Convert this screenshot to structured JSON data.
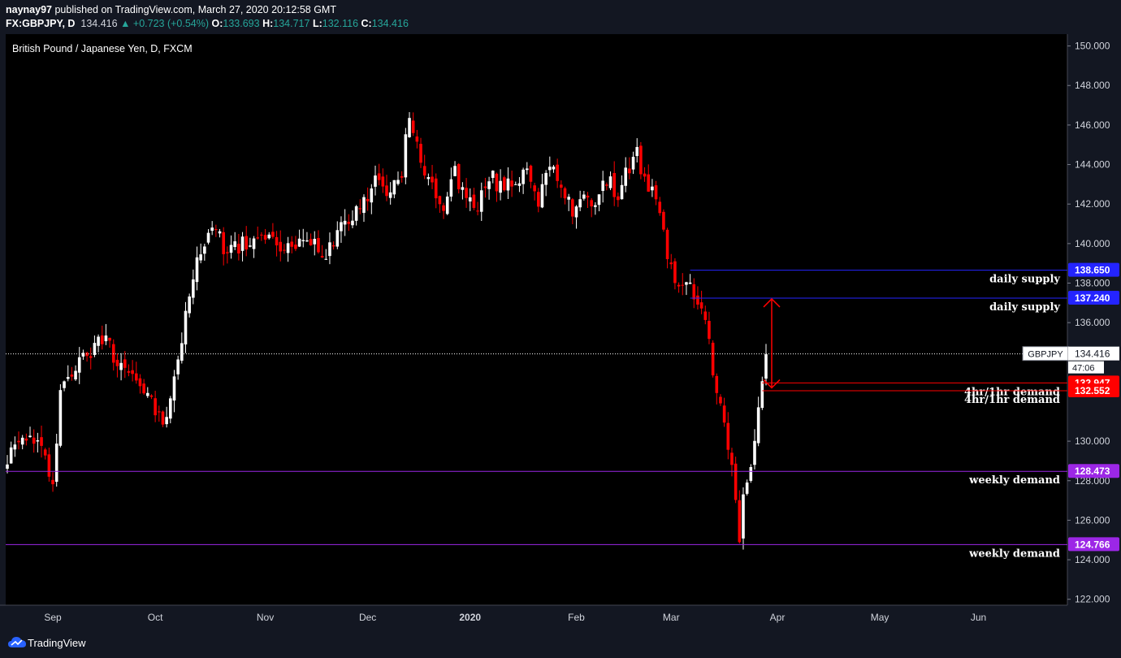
{
  "header": {
    "author": "naynay97",
    "published_text": "published on TradingView.com, March 27, 2020 20:12:58 GMT",
    "symbol": "FX:GBPJPY, D",
    "price": "134.416",
    "change": "▲ +0.723 (+0.54%)",
    "o_label": "O:",
    "o_value": "133.693",
    "h_label": "H:",
    "h_value": "134.717",
    "l_label": "L:",
    "l_value": "132.116",
    "c_label": "C:",
    "c_value": "134.416"
  },
  "footer": {
    "brand": "TradingView",
    "logo_icon": "tradingview-cloud-icon"
  },
  "colors": {
    "background": "#000000",
    "up_candle": "#ffffff",
    "down_candle": "#ff0000",
    "supply": "#2424ff",
    "demand_4h": "#ff0000",
    "demand_weekly": "#9c27e6",
    "arrow": "#ff0000"
  },
  "chart_data": {
    "type": "candlestick",
    "title": "British Pound / Japanese Yen, D, FXCM",
    "x_labels": [
      "Sep",
      "Oct",
      "Nov",
      "Dec",
      "2020",
      "Feb",
      "Mar",
      "Apr",
      "May",
      "Jun"
    ],
    "y_ticks": [
      "150.000",
      "148.000",
      "146.000",
      "144.000",
      "142.000",
      "140.000",
      "138.000",
      "136.000",
      "130.000",
      "128.000",
      "126.000",
      "124.000",
      "122.000"
    ],
    "ylim": [
      121.7,
      150.6
    ],
    "grid": false,
    "horizontal_levels": [
      {
        "price": 138.65,
        "label": "daily supply",
        "tag": "138.650",
        "kind": "supply"
      },
      {
        "price": 137.24,
        "label": "daily supply",
        "tag": "137.240",
        "kind": "supply"
      },
      {
        "price": 132.947,
        "label": "4hr/1hr demand",
        "tag": "132.947",
        "kind": "demand_4h"
      },
      {
        "price": 132.552,
        "label": "4hr/1hr demand",
        "tag": "132.552",
        "kind": "demand_4h"
      },
      {
        "price": 128.473,
        "label": "weekly demand",
        "tag": "128.473",
        "kind": "demand_weekly"
      },
      {
        "price": 124.766,
        "label": "weekly demand",
        "tag": "124.766",
        "kind": "demand_weekly"
      }
    ],
    "last_price": {
      "symbol": "GBPJPY",
      "value": "134.416",
      "countdown": "47:06"
    },
    "annotations": [
      {
        "type": "double-arrow",
        "from": 137.2,
        "to": 132.7
      }
    ],
    "anchor_points": [
      [
        0,
        129.2
      ],
      [
        5,
        130.3
      ],
      [
        9,
        129.5
      ],
      [
        12,
        128.0
      ],
      [
        14,
        132.6
      ],
      [
        18,
        133.8
      ],
      [
        22,
        134.5
      ],
      [
        26,
        135.5
      ],
      [
        28,
        134.4
      ],
      [
        32,
        133.7
      ],
      [
        36,
        132.6
      ],
      [
        39,
        131.5
      ],
      [
        42,
        130.9
      ],
      [
        45,
        134.2
      ],
      [
        48,
        137.4
      ],
      [
        51,
        139.7
      ],
      [
        54,
        141.0
      ],
      [
        57,
        139.9
      ],
      [
        61,
        139.8
      ],
      [
        66,
        140.4
      ],
      [
        70,
        140.0
      ],
      [
        75,
        139.7
      ],
      [
        80,
        140.2
      ],
      [
        84,
        139.5
      ],
      [
        88,
        141.1
      ],
      [
        91,
        141.6
      ],
      [
        94,
        142.2
      ],
      [
        98,
        143.4
      ],
      [
        101,
        142.5
      ],
      [
        104,
        143.4
      ],
      [
        106,
        146.8
      ],
      [
        109,
        144.0
      ],
      [
        112,
        142.8
      ],
      [
        115,
        142.0
      ],
      [
        118,
        143.6
      ],
      [
        121,
        142.3
      ],
      [
        124,
        141.7
      ],
      [
        127,
        143.5
      ],
      [
        130,
        142.8
      ],
      [
        134,
        143.2
      ],
      [
        137,
        143.9
      ],
      [
        140,
        142.3
      ],
      [
        143,
        143.8
      ],
      [
        146,
        142.8
      ],
      [
        149,
        141.6
      ],
      [
        152,
        142.8
      ],
      [
        155,
        141.8
      ],
      [
        158,
        143.2
      ],
      [
        161,
        142.5
      ],
      [
        164,
        144.0
      ],
      [
        166,
        144.6
      ],
      [
        168,
        143.1
      ],
      [
        171,
        142.2
      ],
      [
        174,
        139.5
      ],
      [
        176,
        138.2
      ],
      [
        178,
        138.1
      ],
      [
        181,
        137.5
      ],
      [
        184,
        136.0
      ],
      [
        186,
        133.6
      ],
      [
        188,
        131.8
      ],
      [
        190,
        129.8
      ],
      [
        192,
        127.0
      ],
      [
        193,
        125.2
      ],
      [
        194,
        127.5
      ],
      [
        196,
        128.8
      ],
      [
        198,
        132.0
      ],
      [
        200,
        134.4
      ]
    ],
    "seed": 97
  }
}
